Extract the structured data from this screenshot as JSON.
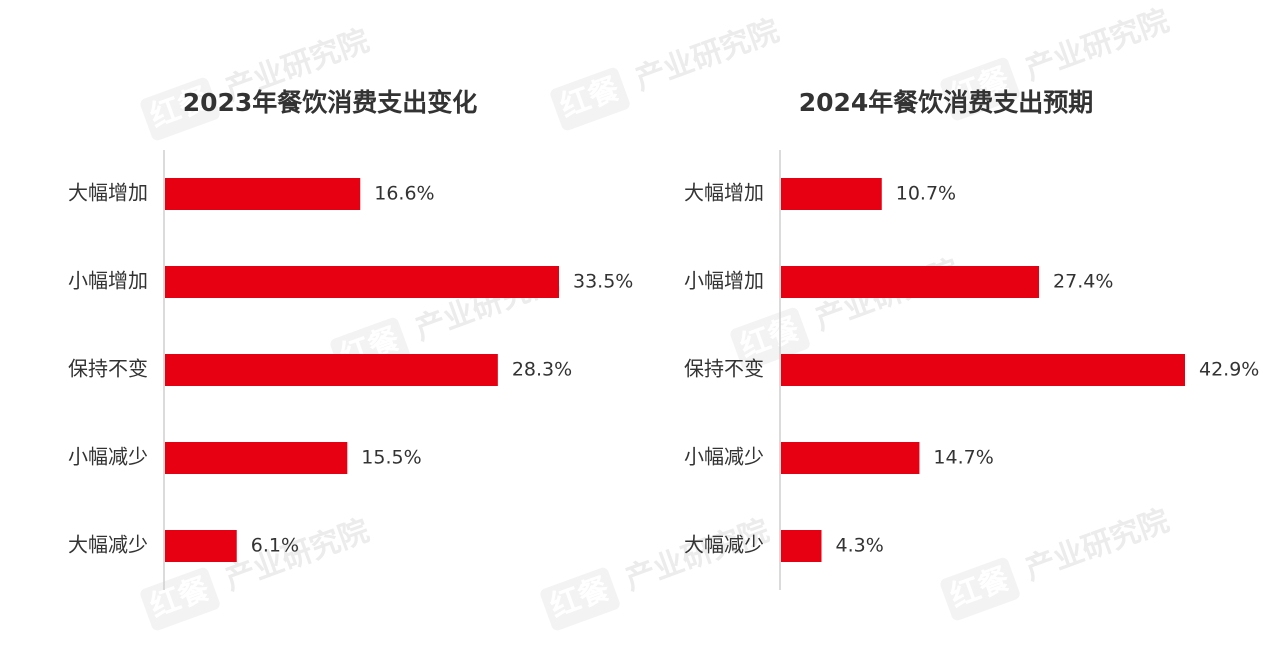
{
  "chart_data": [
    {
      "type": "bar",
      "orientation": "horizontal",
      "title": "2023年餐饮消费支出变化",
      "categories": [
        "大幅增加",
        "小幅增加",
        "保持不变",
        "小幅减少",
        "大幅减少"
      ],
      "values": [
        16.6,
        33.5,
        28.3,
        15.5,
        6.1
      ],
      "value_labels": [
        "16.6%",
        "33.5%",
        "28.3%",
        "15.5%",
        "6.1%"
      ],
      "color": "#e60012"
    },
    {
      "type": "bar",
      "orientation": "horizontal",
      "title": "2024年餐饮消费支出预期",
      "categories": [
        "大幅增加",
        "小幅增加",
        "保持不变",
        "小幅减少",
        "大幅减少"
      ],
      "values": [
        10.7,
        27.4,
        42.9,
        14.7,
        4.3
      ],
      "value_labels": [
        "10.7%",
        "27.4%",
        "42.9%",
        "14.7%",
        "4.3%"
      ],
      "color": "#e60012"
    }
  ],
  "watermark": {
    "brand": "红餐",
    "text": "产业研究院"
  }
}
